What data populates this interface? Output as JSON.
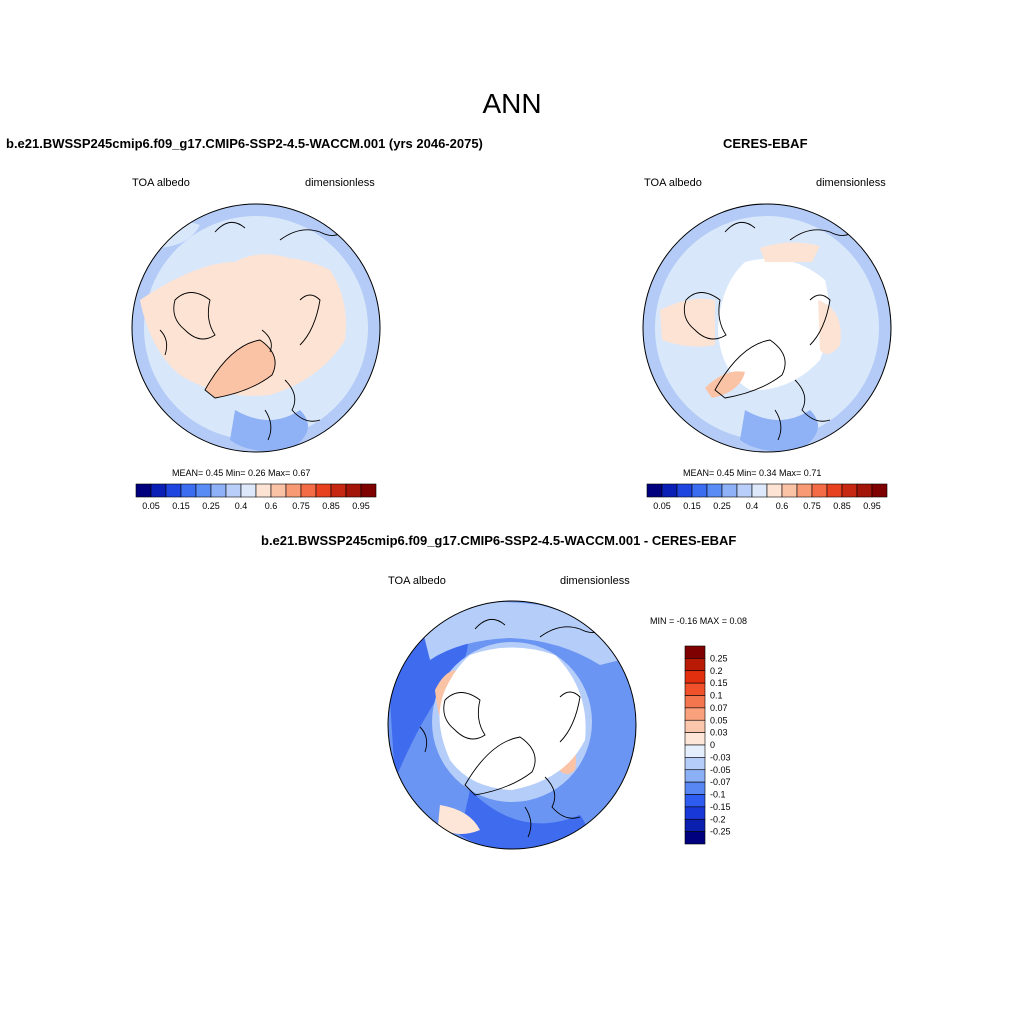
{
  "main_title": "ANN",
  "panels": [
    {
      "title": "b.e21.BWSSP245cmip6.f09_g17.CMIP6-SSP2-4.5-WACCM.001 (yrs 2046-2075)",
      "left_label": "TOA albedo",
      "right_label": "dimensionless",
      "stats": "MEAN=  0.45  Min=   0.26  Max=   0.67"
    },
    {
      "title": "CERES-EBAF",
      "left_label": "TOA albedo",
      "right_label": "dimensionless",
      "stats": "MEAN=  0.45  Min=   0.34  Max=   0.71"
    },
    {
      "title": "b.e21.BWSSP245cmip6.f09_g17.CMIP6-SSP2-4.5-WACCM.001 - CERES-EBAF",
      "left_label": "TOA albedo",
      "right_label": "dimensionless",
      "stats": "MIN =  -0.16 MAX =   0.08"
    }
  ],
  "colorbar_abs": {
    "labels": [
      "0.05",
      "0.15",
      "0.25",
      "0.4",
      "0.6",
      "0.75",
      "0.85",
      "0.95"
    ],
    "colors": [
      "#00007f",
      "#0a1fb5",
      "#1f45e0",
      "#3a6df0",
      "#5a8cf5",
      "#8fb1f7",
      "#b9cff9",
      "#dde9fb",
      "#fde3d3",
      "#fbc3a6",
      "#f89a74",
      "#f46c46",
      "#e8411f",
      "#c62812",
      "#a31508",
      "#7f0000"
    ]
  },
  "colorbar_diff": {
    "labels": [
      "0.25",
      "0.2",
      "0.15",
      "0.1",
      "0.07",
      "0.05",
      "0.03",
      "0",
      "-0.03",
      "-0.05",
      "-0.07",
      "-0.1",
      "-0.15",
      "-0.2",
      "-0.25"
    ],
    "colors": [
      "#7f0000",
      "#b81a06",
      "#e2300f",
      "#f0502a",
      "#f4764e",
      "#f9a07d",
      "#fbc7ac",
      "#fde6d8",
      "#e4eefc",
      "#b5cdf9",
      "#8bb0f6",
      "#5886f3",
      "#2f5cf0",
      "#1838d8",
      "#0a1fae",
      "#00007f"
    ]
  },
  "map_colors": {
    "ocean_light": "#d9e7fb",
    "ocean_mid": "#b3cbf6",
    "ocean_dark": "#8fb1f5",
    "land_warm": "#fde3d3",
    "land_warmer": "#fbc3a6",
    "diff_blue_dark": "#3f6cef",
    "diff_blue_mid": "#6b95f2",
    "diff_blue_light": "#b5cdf9",
    "diff_pink": "#fbc3a6",
    "diff_pale": "#fde6d8",
    "white": "#ffffff"
  }
}
